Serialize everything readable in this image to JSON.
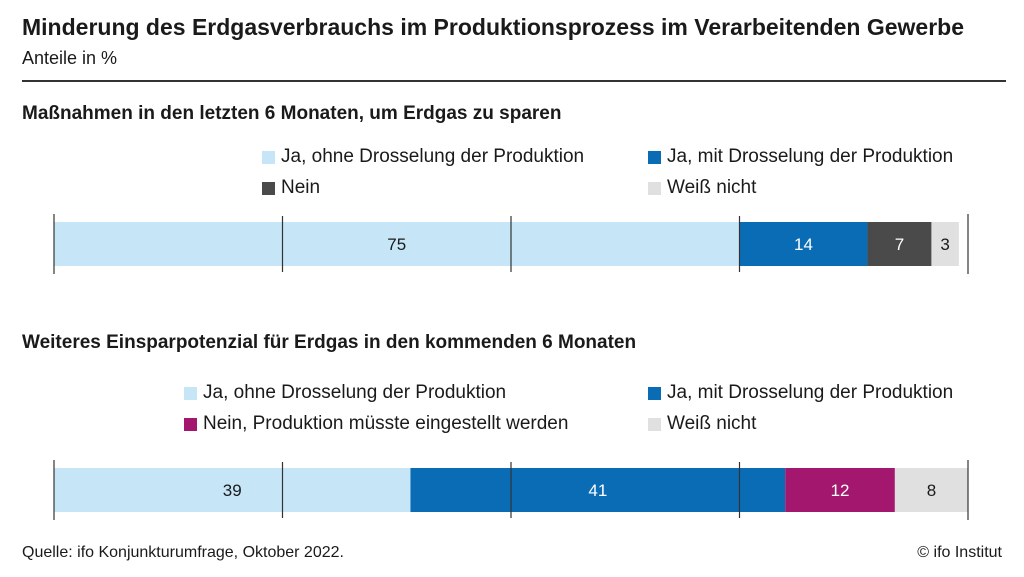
{
  "header": {
    "title": "Minderung des Erdgasverbrauchs im Produktionsprozess im Verarbeitenden Gewerbe",
    "subtitle": "Anteile in %"
  },
  "footer": {
    "source": "Quelle: ifo Konjunkturumfrage, Oktober 2022.",
    "credit": "© ifo Institut"
  },
  "chart_data": [
    {
      "type": "bar",
      "stacked": true,
      "orientation": "horizontal",
      "title": "Maßnahmen in den letzten 6 Monaten, um Erdgas zu sparen",
      "xlim": [
        0,
        100
      ],
      "series": [
        {
          "name": "Ja, ohne Drosselung der Produktion",
          "value": 75,
          "color": "#c6e6f8"
        },
        {
          "name": "Ja, mit Drosselung der Produktion",
          "value": 14,
          "color": "#0a6cb4"
        },
        {
          "name": "Nein",
          "value": 7,
          "color": "#4a4a4a"
        },
        {
          "name": "Weiß nicht",
          "value": 3,
          "color": "#e0e0e0"
        }
      ]
    },
    {
      "type": "bar",
      "stacked": true,
      "orientation": "horizontal",
      "title": "Weiteres Einsparpotenzial für Erdgas in den kommenden 6 Monaten",
      "xlim": [
        0,
        100
      ],
      "series": [
        {
          "name": "Ja, ohne Drosselung der Produktion",
          "value": 39,
          "color": "#c6e6f8"
        },
        {
          "name": "Ja, mit Drosselung der Produktion",
          "value": 41,
          "color": "#0a6cb4"
        },
        {
          "name": "Nein, Produktion müsste eingestellt werden",
          "value": 12,
          "color": "#a3186e"
        },
        {
          "name": "Weiß nicht",
          "value": 8,
          "color": "#e0e0e0"
        }
      ]
    }
  ]
}
